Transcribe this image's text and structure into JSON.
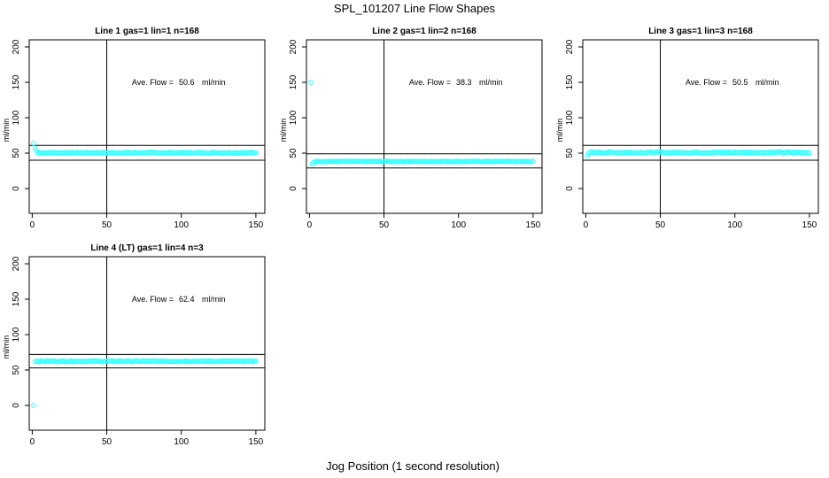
{
  "figure": {
    "title": "SPL_101207  Line Flow Shapes",
    "xlabel": "Jog Position (1 second resolution)"
  },
  "colors": {
    "points": "#33ffff",
    "axes": "#000000",
    "background": "#ffffff"
  },
  "chart_data": [
    {
      "type": "scatter",
      "title": "Line 1 gas=1 lin=1 n=168",
      "ylabel": "ml/min",
      "annotation": {
        "label": "Ave. Flow =",
        "value": "50.6",
        "unit": "ml/min"
      },
      "xlim": [
        -2,
        156
      ],
      "ylim": [
        -35,
        210
      ],
      "x_ticks": [
        0,
        50,
        100,
        150
      ],
      "y_ticks": [
        0,
        50,
        100,
        150,
        200
      ],
      "vline": 50,
      "hlines": [
        61,
        40
      ],
      "x_start": 1,
      "x_end": 150,
      "points_head": [
        64,
        57,
        53
      ],
      "points_base": 50.6,
      "points_noise": 0.8
    },
    {
      "type": "scatter",
      "title": "Line 2 gas=1 lin=2 n=168",
      "ylabel": "ml/min",
      "annotation": {
        "label": "Ave. Flow =",
        "value": "38.3",
        "unit": "ml/min"
      },
      "xlim": [
        -2,
        156
      ],
      "ylim": [
        -35,
        210
      ],
      "x_ticks": [
        0,
        50,
        100,
        150
      ],
      "y_ticks": [
        0,
        50,
        100,
        150,
        200
      ],
      "vline": 50,
      "hlines": [
        49,
        29
      ],
      "x_start": 1,
      "x_end": 150,
      "points_head": [
        150,
        35,
        37
      ],
      "points_base": 38.3,
      "points_noise": 0.5
    },
    {
      "type": "scatter",
      "title": "Line 3 gas=1 lin=3 n=168",
      "ylabel": "ml/min",
      "annotation": {
        "label": "Ave. Flow =",
        "value": "50.5",
        "unit": "ml/min"
      },
      "xlim": [
        -2,
        156
      ],
      "ylim": [
        -35,
        210
      ],
      "x_ticks": [
        0,
        50,
        100,
        150
      ],
      "y_ticks": [
        0,
        50,
        100,
        150,
        200
      ],
      "vline": 50,
      "hlines": [
        61,
        40
      ],
      "x_start": 1,
      "x_end": 150,
      "points_head": [
        46,
        49
      ],
      "points_base": 51,
      "points_noise": 1.0
    },
    {
      "type": "scatter",
      "title": "Line 4 (LT) gas=1 lin=4 n=3",
      "ylabel": "ml/min",
      "annotation": {
        "label": "Ave. Flow =",
        "value": "62.4",
        "unit": "ml/min"
      },
      "xlim": [
        -2,
        156
      ],
      "ylim": [
        -35,
        210
      ],
      "x_ticks": [
        0,
        50,
        100,
        150
      ],
      "y_ticks": [
        0,
        50,
        100,
        150,
        200
      ],
      "vline": 50,
      "hlines": [
        72,
        53
      ],
      "x_start": 1,
      "x_end": 150,
      "points_head": [
        0,
        62
      ],
      "points_base": 62.4,
      "points_noise": 0.6
    }
  ]
}
